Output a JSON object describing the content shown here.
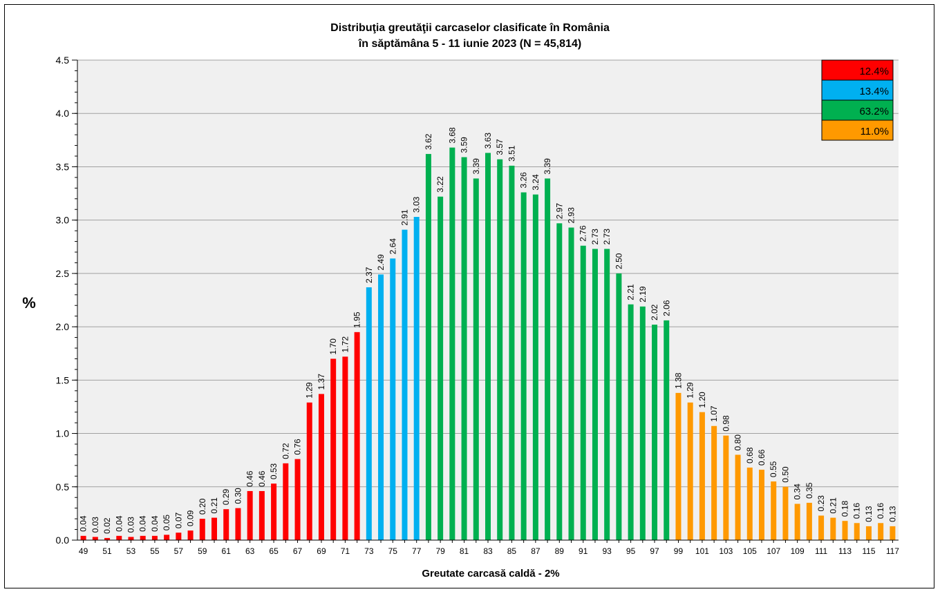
{
  "chart_data": {
    "type": "bar",
    "title_line1": "Distribuţia greutăţii carcaselor clasificate în România",
    "title_line2": "în săptămâna  5 - 11 iunie 2023 (N = 45,814)",
    "xlabel": "Greutate carcasă caldă - 2%",
    "ylabel": "%",
    "ylim": [
      0,
      4.5
    ],
    "yticks": [
      "0.0",
      "0.5",
      "1.0",
      "1.5",
      "2.0",
      "2.5",
      "3.0",
      "3.5",
      "4.0",
      "4.5"
    ],
    "x_start": 49,
    "values": [
      0.04,
      0.03,
      0.02,
      0.04,
      0.03,
      0.04,
      0.04,
      0.05,
      0.07,
      0.09,
      0.2,
      0.21,
      0.29,
      0.3,
      0.46,
      0.46,
      0.53,
      0.72,
      0.76,
      1.29,
      1.37,
      1.7,
      1.72,
      1.95,
      2.37,
      2.49,
      2.64,
      2.91,
      3.03,
      3.62,
      3.22,
      3.68,
      3.59,
      3.39,
      3.63,
      3.57,
      3.51,
      3.26,
      3.24,
      3.39,
      2.97,
      2.93,
      2.76,
      2.73,
      2.73,
      2.5,
      2.21,
      2.19,
      2.02,
      2.06,
      1.38,
      1.29,
      1.2,
      1.07,
      0.98,
      0.8,
      0.68,
      0.66,
      0.55,
      0.5,
      0.34,
      0.35,
      0.23,
      0.21,
      0.18,
      0.16,
      0.13,
      0.16,
      0.13
    ],
    "labels": [
      "0.04",
      "0.03",
      "0.02",
      "0.04",
      "0.03",
      "0.04",
      "0.04",
      "0.05",
      "0.07",
      "0.09",
      "0.20",
      "0.21",
      "0.29",
      "0.30",
      "0.46",
      "0.46",
      "0.53",
      "0.72",
      "0.76",
      "1.29",
      "1.37",
      "1.70",
      "1.72",
      "1.95",
      "2.37",
      "2.49",
      "2.64",
      "2.91",
      "3.03",
      "3.62",
      "3.22",
      "3.68",
      "3.59",
      "3.39",
      "3.63",
      "3.57",
      "3.51",
      "3.26",
      "3.24",
      "3.39",
      "2.97",
      "2.93",
      "2.76",
      "2.73",
      "2.73",
      "2.50",
      "2.21",
      "2.19",
      "2.02",
      "2.06",
      "1.38",
      "1.29",
      "1.20",
      "1.07",
      "0.98",
      "0.80",
      "0.68",
      "0.66",
      "0.55",
      "0.50",
      "0.34",
      "0.35",
      "0.23",
      "0.21",
      "0.18",
      "0.16",
      "0.13",
      "0.16",
      "0.13"
    ],
    "segments": [
      {
        "from": 49,
        "to": 72,
        "color": "#ff0000",
        "share": "12.4%"
      },
      {
        "from": 73,
        "to": 77,
        "color": "#00b0f0",
        "share": "13.4%"
      },
      {
        "from": 78,
        "to": 98,
        "color": "#00b050",
        "share": "63.2%"
      },
      {
        "from": 99,
        "to": 117,
        "color": "#ff9900",
        "share": "11.0%"
      }
    ],
    "grid": true,
    "legend_position": "top-right",
    "plot_background": "#f0f0f0"
  }
}
